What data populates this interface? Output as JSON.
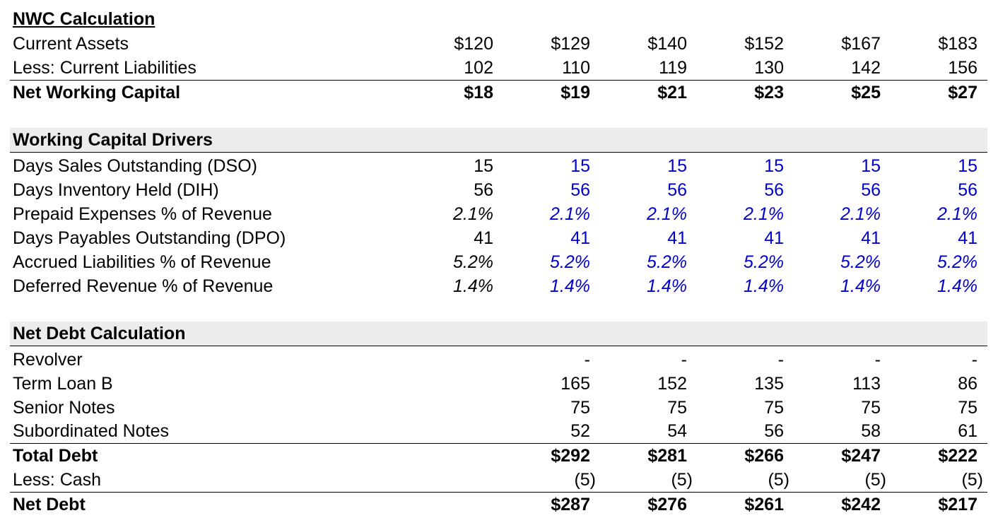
{
  "nwc": {
    "title": "NWC Calculation",
    "current_assets": {
      "label": "Current Assets",
      "values": [
        "$120",
        "$129",
        "$140",
        "$152",
        "$167",
        "$183"
      ]
    },
    "current_liabilities": {
      "label": "Less: Current Liabilities",
      "values": [
        "102",
        "110",
        "119",
        "130",
        "142",
        "156"
      ]
    },
    "net_working_capital": {
      "label": "Net Working Capital",
      "values": [
        "$18",
        "$19",
        "$21",
        "$23",
        "$25",
        "$27"
      ]
    }
  },
  "drivers": {
    "title": "Working Capital Drivers",
    "dso": {
      "label": "Days Sales Outstanding (DSO)",
      "values": [
        "15",
        "15",
        "15",
        "15",
        "15",
        "15"
      ]
    },
    "dih": {
      "label": "Days Inventory Held (DIH)",
      "values": [
        "56",
        "56",
        "56",
        "56",
        "56",
        "56"
      ]
    },
    "prepaid": {
      "label": "Prepaid Expenses % of Revenue",
      "values": [
        "2.1%",
        "2.1%",
        "2.1%",
        "2.1%",
        "2.1%",
        "2.1%"
      ]
    },
    "dpo": {
      "label": "Days Payables Outstanding (DPO)",
      "values": [
        "41",
        "41",
        "41",
        "41",
        "41",
        "41"
      ]
    },
    "accrued": {
      "label": "Accrued Liabilities % of Revenue",
      "values": [
        "5.2%",
        "5.2%",
        "5.2%",
        "5.2%",
        "5.2%",
        "5.2%"
      ]
    },
    "deferred": {
      "label": "Deferred Revenue % of Revenue",
      "values": [
        "1.4%",
        "1.4%",
        "1.4%",
        "1.4%",
        "1.4%",
        "1.4%"
      ]
    }
  },
  "net_debt": {
    "title": "Net Debt Calculation",
    "revolver": {
      "label": "Revolver",
      "values": [
        "",
        "-",
        "-",
        "-",
        "-",
        "-"
      ]
    },
    "term_loan_b": {
      "label": "Term Loan B",
      "values": [
        "",
        "165",
        "152",
        "135",
        "113",
        "86"
      ]
    },
    "senior_notes": {
      "label": "Senior Notes",
      "values": [
        "",
        "75",
        "75",
        "75",
        "75",
        "75"
      ]
    },
    "subordinated_notes": {
      "label": "Subordinated Notes",
      "values": [
        "",
        "52",
        "54",
        "56",
        "58",
        "61"
      ]
    },
    "total_debt": {
      "label": "Total Debt",
      "values": [
        "",
        "$292",
        "$281",
        "$266",
        "$247",
        "$222"
      ]
    },
    "less_cash": {
      "label": "Less: Cash",
      "values": [
        "",
        "(5)",
        "(5)",
        "(5)",
        "(5)",
        "(5)"
      ]
    },
    "net_debt_row": {
      "label": "Net Debt",
      "values": [
        "",
        "$287",
        "$276",
        "$261",
        "$242",
        "$217"
      ]
    }
  },
  "colors": {
    "input_blue": "#0000cc",
    "section_shade": "#ececec"
  }
}
